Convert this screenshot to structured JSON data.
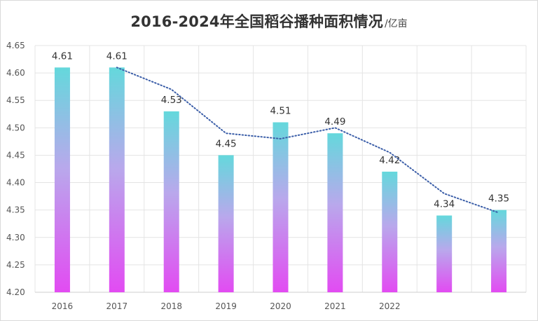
{
  "colors": {
    "bar_top": "#64d8dc",
    "bar_mid": "#b9a8ec",
    "bar_bottom": "#e24bf2",
    "trend": "#3b5ea8",
    "grid": "#e4e4e4"
  },
  "chart_data": {
    "type": "bar",
    "title": "2016-2024年全国稻谷播种面积情况",
    "unit": "/亿亩",
    "categories": [
      "2016",
      "2017",
      "2018",
      "2019",
      "2020",
      "2021",
      "2022",
      "",
      ""
    ],
    "values": [
      4.61,
      4.61,
      4.53,
      4.45,
      4.51,
      4.49,
      4.42,
      4.34,
      4.35
    ],
    "data_labels": [
      "4.61",
      "4.61",
      "4.53",
      "4.45",
      "4.51",
      "4.49",
      "4.42",
      "4.34",
      "4.35"
    ],
    "trendline": {
      "type": "moving-average",
      "style": "dotted"
    },
    "ylim": [
      4.2,
      4.65
    ],
    "yticks": [
      "4.20",
      "4.25",
      "4.30",
      "4.35",
      "4.40",
      "4.45",
      "4.50",
      "4.55",
      "4.60",
      "4.65"
    ],
    "grid": true,
    "legend": "none"
  }
}
